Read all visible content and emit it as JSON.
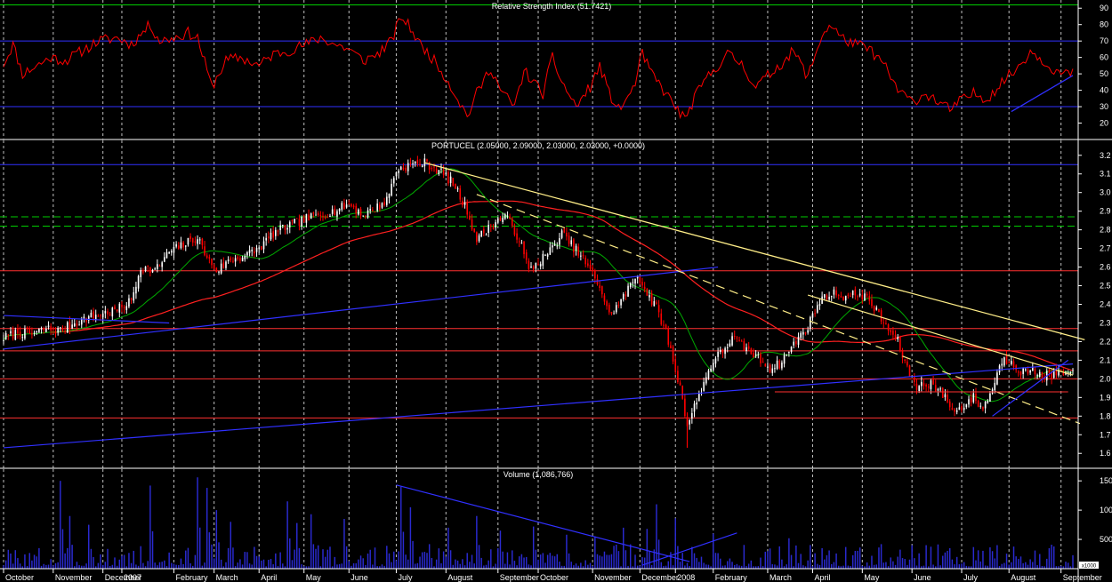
{
  "colors": {
    "background": "#000000",
    "grid": "#ffffff",
    "rsi_line": "#ff0000",
    "price_up": "#ffffff",
    "price_down": "#ff0000",
    "ma_short": "#00aa00",
    "ma_long": "#ff2020",
    "trend_blue": "#2020ff",
    "trend_yellow": "#ffee88",
    "level_red": "#ff3030",
    "level_blue": "#3030ff",
    "level_green": "#00cc00",
    "volume_bar": "#2a2ad0",
    "axis_text": "#ffffff"
  },
  "months": [
    {
      "label": "October",
      "i": 0
    },
    {
      "label": "November",
      "i": 21
    },
    {
      "label": "December",
      "i": 42
    },
    {
      "label": "2007",
      "i": 50
    },
    {
      "label": "February",
      "i": 72
    },
    {
      "label": "March",
      "i": 89
    },
    {
      "label": "April",
      "i": 108
    },
    {
      "label": "May",
      "i": 127
    },
    {
      "label": "June",
      "i": 146
    },
    {
      "label": "July",
      "i": 166
    },
    {
      "label": "August",
      "i": 187
    },
    {
      "label": "September",
      "i": 209
    },
    {
      "label": "October",
      "i": 226
    },
    {
      "label": "November",
      "i": 249
    },
    {
      "label": "December",
      "i": 269
    },
    {
      "label": "2008",
      "i": 284
    },
    {
      "label": "February",
      "i": 300
    },
    {
      "label": "March",
      "i": 323
    },
    {
      "label": "April",
      "i": 342
    },
    {
      "label": "May",
      "i": 363
    },
    {
      "label": "June",
      "i": 384
    },
    {
      "label": "July",
      "i": 405
    },
    {
      "label": "August",
      "i": 425
    },
    {
      "label": "September",
      "i": 447
    }
  ],
  "chart_data": [
    {
      "type": "line",
      "id": "rsi",
      "title": "Relative Strength Index (51.7421)",
      "ylim": [
        10,
        95
      ],
      "yticks": [
        "20",
        "30",
        "40",
        "50",
        "60",
        "70",
        "80",
        "90"
      ],
      "levels": [
        {
          "value": 92,
          "color": "#00cc00"
        },
        {
          "value": 70,
          "color": "#3030ff"
        },
        {
          "value": 30,
          "color": "#3030ff"
        }
      ],
      "anchors": [
        [
          0,
          56
        ],
        [
          4,
          68
        ],
        [
          8,
          50
        ],
        [
          14,
          55
        ],
        [
          20,
          60
        ],
        [
          26,
          58
        ],
        [
          32,
          63
        ],
        [
          40,
          70
        ],
        [
          48,
          72
        ],
        [
          54,
          68
        ],
        [
          62,
          80
        ],
        [
          66,
          70
        ],
        [
          72,
          72
        ],
        [
          78,
          75
        ],
        [
          82,
          72
        ],
        [
          88,
          42
        ],
        [
          94,
          58
        ],
        [
          100,
          60
        ],
        [
          108,
          55
        ],
        [
          114,
          62
        ],
        [
          120,
          64
        ],
        [
          128,
          68
        ],
        [
          134,
          72
        ],
        [
          140,
          68
        ],
        [
          146,
          65
        ],
        [
          152,
          58
        ],
        [
          158,
          62
        ],
        [
          164,
          70
        ],
        [
          168,
          85
        ],
        [
          172,
          78
        ],
        [
          176,
          68
        ],
        [
          180,
          62
        ],
        [
          186,
          50
        ],
        [
          192,
          35
        ],
        [
          196,
          24
        ],
        [
          200,
          38
        ],
        [
          206,
          54
        ],
        [
          210,
          40
        ],
        [
          216,
          30
        ],
        [
          220,
          52
        ],
        [
          224,
          45
        ],
        [
          228,
          38
        ],
        [
          232,
          60
        ],
        [
          236,
          45
        ],
        [
          242,
          30
        ],
        [
          248,
          42
        ],
        [
          252,
          55
        ],
        [
          256,
          38
        ],
        [
          260,
          28
        ],
        [
          266,
          40
        ],
        [
          270,
          62
        ],
        [
          274,
          50
        ],
        [
          278,
          42
        ],
        [
          284,
          30
        ],
        [
          288,
          22
        ],
        [
          292,
          35
        ],
        [
          296,
          45
        ],
        [
          300,
          52
        ],
        [
          306,
          62
        ],
        [
          312,
          56
        ],
        [
          318,
          42
        ],
        [
          324,
          50
        ],
        [
          330,
          58
        ],
        [
          334,
          64
        ],
        [
          340,
          48
        ],
        [
          346,
          74
        ],
        [
          350,
          80
        ],
        [
          354,
          72
        ],
        [
          360,
          68
        ],
        [
          366,
          65
        ],
        [
          372,
          56
        ],
        [
          378,
          40
        ],
        [
          384,
          33
        ],
        [
          390,
          38
        ],
        [
          396,
          32
        ],
        [
          400,
          28
        ],
        [
          404,
          33
        ],
        [
          410,
          38
        ],
        [
          416,
          35
        ],
        [
          422,
          45
        ],
        [
          426,
          50
        ],
        [
          430,
          56
        ],
        [
          434,
          64
        ],
        [
          438,
          60
        ],
        [
          442,
          55
        ],
        [
          447,
          50
        ]
      ],
      "trendline": [
        [
          426,
          27
        ],
        [
          452,
          49
        ]
      ]
    },
    {
      "type": "candlestick",
      "id": "price",
      "title": "PORTUCEL (2.05000, 2.09000, 2.03000, 2.03000, +0.0000)",
      "ylim": [
        1.52,
        3.28
      ],
      "yticks": [
        "1.6",
        "1.7",
        "1.8",
        "1.9",
        "2.0",
        "2.1",
        "2.2",
        "2.3",
        "2.4",
        "2.5",
        "2.6",
        "2.7",
        "2.8",
        "2.9",
        "3.0",
        "3.1",
        "3.2"
      ],
      "anchors": [
        [
          0,
          2.22
        ],
        [
          6,
          2.25
        ],
        [
          12,
          2.24
        ],
        [
          18,
          2.27
        ],
        [
          24,
          2.26
        ],
        [
          30,
          2.3
        ],
        [
          36,
          2.33
        ],
        [
          42,
          2.35
        ],
        [
          48,
          2.37
        ],
        [
          54,
          2.42
        ],
        [
          58,
          2.6
        ],
        [
          64,
          2.58
        ],
        [
          70,
          2.68
        ],
        [
          76,
          2.72
        ],
        [
          82,
          2.76
        ],
        [
          86,
          2.65
        ],
        [
          90,
          2.58
        ],
        [
          96,
          2.64
        ],
        [
          102,
          2.66
        ],
        [
          108,
          2.7
        ],
        [
          114,
          2.78
        ],
        [
          120,
          2.82
        ],
        [
          128,
          2.86
        ],
        [
          134,
          2.88
        ],
        [
          140,
          2.9
        ],
        [
          146,
          2.94
        ],
        [
          152,
          2.88
        ],
        [
          158,
          2.92
        ],
        [
          162,
          2.96
        ],
        [
          166,
          3.12
        ],
        [
          172,
          3.15
        ],
        [
          178,
          3.16
        ],
        [
          184,
          3.12
        ],
        [
          190,
          3.05
        ],
        [
          196,
          2.9
        ],
        [
          200,
          2.75
        ],
        [
          206,
          2.82
        ],
        [
          212,
          2.88
        ],
        [
          218,
          2.75
        ],
        [
          222,
          2.58
        ],
        [
          228,
          2.65
        ],
        [
          232,
          2.7
        ],
        [
          236,
          2.78
        ],
        [
          240,
          2.72
        ],
        [
          244,
          2.66
        ],
        [
          248,
          2.58
        ],
        [
          252,
          2.5
        ],
        [
          256,
          2.34
        ],
        [
          260,
          2.4
        ],
        [
          264,
          2.48
        ],
        [
          268,
          2.56
        ],
        [
          272,
          2.46
        ],
        [
          276,
          2.38
        ],
        [
          280,
          2.25
        ],
        [
          284,
          2.05
        ],
        [
          287,
          1.9
        ],
        [
          289,
          1.75
        ],
        [
          292,
          1.85
        ],
        [
          296,
          1.98
        ],
        [
          300,
          2.1
        ],
        [
          304,
          2.15
        ],
        [
          308,
          2.22
        ],
        [
          312,
          2.18
        ],
        [
          316,
          2.14
        ],
        [
          320,
          2.1
        ],
        [
          324,
          2.06
        ],
        [
          328,
          2.08
        ],
        [
          332,
          2.15
        ],
        [
          336,
          2.22
        ],
        [
          340,
          2.28
        ],
        [
          344,
          2.4
        ],
        [
          348,
          2.45
        ],
        [
          352,
          2.46
        ],
        [
          356,
          2.44
        ],
        [
          362,
          2.46
        ],
        [
          366,
          2.42
        ],
        [
          372,
          2.3
        ],
        [
          378,
          2.2
        ],
        [
          382,
          2.05
        ],
        [
          386,
          1.96
        ],
        [
          392,
          1.98
        ],
        [
          398,
          1.9
        ],
        [
          402,
          1.82
        ],
        [
          406,
          1.86
        ],
        [
          410,
          1.9
        ],
        [
          414,
          1.84
        ],
        [
          418,
          1.95
        ],
        [
          422,
          2.1
        ],
        [
          426,
          2.1
        ],
        [
          430,
          2.04
        ],
        [
          436,
          2.04
        ],
        [
          440,
          2.02
        ],
        [
          447,
          2.03
        ]
      ],
      "levels": [
        {
          "value": 3.15,
          "color": "#3030ff"
        },
        {
          "value": 2.87,
          "color": "#00cc00",
          "dash": true
        },
        {
          "value": 2.82,
          "color": "#00cc00",
          "dash": true
        },
        {
          "value": 2.58,
          "color": "#ff3030"
        },
        {
          "value": 2.27,
          "color": "#ff3030"
        },
        {
          "value": 2.15,
          "color": "#ff3030"
        },
        {
          "value": 2.0,
          "color": "#ff3030"
        },
        {
          "value": 1.79,
          "color": "#ff3030"
        }
      ],
      "segments": [
        {
          "from": [
            0,
            2.34
          ],
          "to": [
            70,
            2.3
          ],
          "color": "#3030ff",
          "width": 1.2
        },
        {
          "from": [
            0,
            1.63
          ],
          "to": [
            452,
            2.08
          ],
          "color": "#3030ff",
          "width": 1.2
        },
        {
          "from": [
            0,
            2.16
          ],
          "to": [
            302,
            2.6
          ],
          "color": "#3030ff",
          "width": 1.2
        },
        {
          "from": [
            178,
            3.16
          ],
          "to": [
            457,
            2.21
          ],
          "color": "#ffee88",
          "width": 1.3
        },
        {
          "from": [
            200,
            2.99
          ],
          "to": [
            455,
            1.76
          ],
          "color": "#ffee88",
          "width": 1.2,
          "dash": true
        },
        {
          "from": [
            340,
            2.45
          ],
          "to": [
            452,
            2.02
          ],
          "color": "#ffee88",
          "width": 1.2
        },
        {
          "from": [
            326,
            1.93
          ],
          "to": [
            450,
            1.93
          ],
          "color": "#ff3030",
          "width": 1.0
        },
        {
          "from": [
            418,
            1.8
          ],
          "to": [
            450,
            2.1
          ],
          "color": "#3030ff",
          "width": 1.2
        }
      ]
    },
    {
      "type": "bar",
      "id": "volume",
      "title": "Volume (1,086,766)",
      "ylim": [
        0,
        17000
      ],
      "yticks": [
        "5000",
        "10000",
        "15000"
      ],
      "scale_label": "x1000",
      "spikes": [
        [
          24,
          15000
        ],
        [
          28,
          9000
        ],
        [
          36,
          7500
        ],
        [
          62,
          14200
        ],
        [
          82,
          15600
        ],
        [
          86,
          13800
        ],
        [
          90,
          10000
        ],
        [
          96,
          8000
        ],
        [
          120,
          11500
        ],
        [
          124,
          7800
        ],
        [
          130,
          9300
        ],
        [
          144,
          8500
        ],
        [
          168,
          14000
        ],
        [
          172,
          10500
        ],
        [
          188,
          7000
        ],
        [
          200,
          9000
        ],
        [
          210,
          6500
        ],
        [
          224,
          7200
        ],
        [
          238,
          5800
        ],
        [
          250,
          5500
        ],
        [
          262,
          7000
        ],
        [
          272,
          6800
        ],
        [
          276,
          11000
        ],
        [
          284,
          8600
        ],
        [
          300,
          6000
        ],
        [
          332,
          5200
        ],
        [
          346,
          3500
        ],
        [
          384,
          4000
        ],
        [
          400,
          3500
        ],
        [
          418,
          3000
        ]
      ],
      "segments": [
        {
          "from": [
            166,
            14300
          ],
          "to": [
            290,
            1200
          ],
          "color": "#3030ff",
          "width": 1.2
        },
        {
          "from": [
            270,
            600
          ],
          "to": [
            310,
            6100
          ],
          "color": "#3030ff",
          "width": 1.2
        }
      ]
    }
  ]
}
